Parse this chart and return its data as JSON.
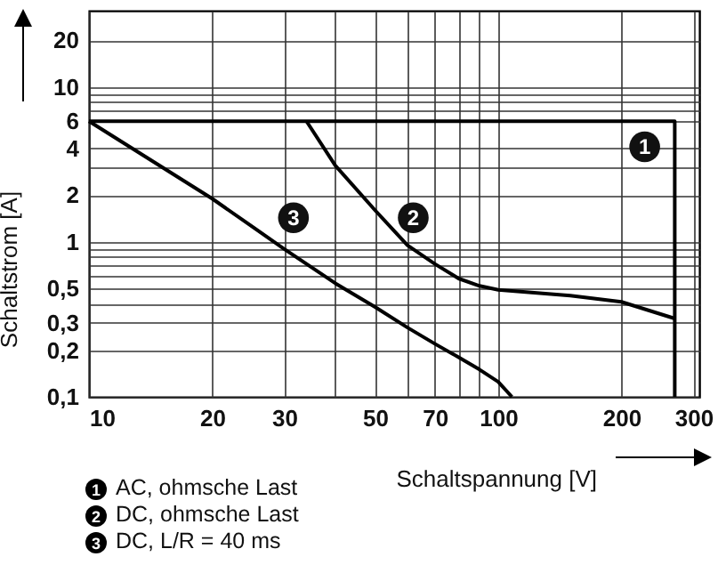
{
  "chart_data": {
    "type": "line",
    "xlabel": "Schaltspannung [V]",
    "ylabel": "Schaltstrom [A]",
    "log": "xy",
    "xlim": [
      10,
      310
    ],
    "ylim": [
      0.1,
      31
    ],
    "xticks": [
      10,
      20,
      30,
      {
        "value": 40,
        "label": null
      },
      50,
      {
        "value": 60,
        "label": null
      },
      70,
      {
        "value": 80,
        "label": null
      },
      {
        "value": 90,
        "label": null
      },
      100,
      200,
      300
    ],
    "yticks": [
      {
        "value": 0.1,
        "label": "0,1"
      },
      {
        "value": 0.2,
        "label": "0,2"
      },
      {
        "value": 0.3,
        "label": "0,3"
      },
      {
        "value": 0.4,
        "label": null
      },
      {
        "value": 0.5,
        "label": "0,5"
      },
      {
        "value": 0.6,
        "label": null
      },
      {
        "value": 0.7,
        "label": null
      },
      {
        "value": 0.8,
        "label": null
      },
      {
        "value": 0.9,
        "label": null
      },
      1,
      2,
      {
        "value": 3,
        "label": null
      },
      4,
      6,
      {
        "value": 7,
        "label": null
      },
      {
        "value": 8,
        "label": null
      },
      {
        "value": 9,
        "label": null
      },
      10,
      20
    ],
    "grid": true,
    "legend": "bottom",
    "marker": "none",
    "line_style": "solid",
    "series": [
      {
        "name": "AC, ohmsche Last",
        "color": "#000000",
        "x": [
          10,
          270,
          270
        ],
        "values": [
          6,
          6,
          0.1
        ]
      },
      {
        "name": "DC, ohmsche Last",
        "color": "#000000",
        "x": [
          34,
          40,
          50,
          60,
          70,
          80,
          90,
          100,
          150,
          200,
          270
        ],
        "values": [
          6,
          3.1,
          1.6,
          0.95,
          0.72,
          0.58,
          0.52,
          0.49,
          0.45,
          0.41,
          0.32
        ]
      },
      {
        "name": "DC, L/R = 40 ms",
        "color": "#000000",
        "x": [
          10,
          20,
          30,
          40,
          50,
          60,
          70,
          80,
          90,
          100,
          108
        ],
        "values": [
          6,
          1.9,
          0.9,
          0.54,
          0.38,
          0.28,
          0.22,
          0.18,
          0.15,
          0.125,
          0.1
        ]
      }
    ],
    "annotations": [
      {
        "text": "1",
        "x": 228,
        "y": 4.1
      },
      {
        "text": "2",
        "x": 62,
        "y": 1.43
      },
      {
        "text": "3",
        "x": 31.6,
        "y": 1.43
      }
    ]
  }
}
